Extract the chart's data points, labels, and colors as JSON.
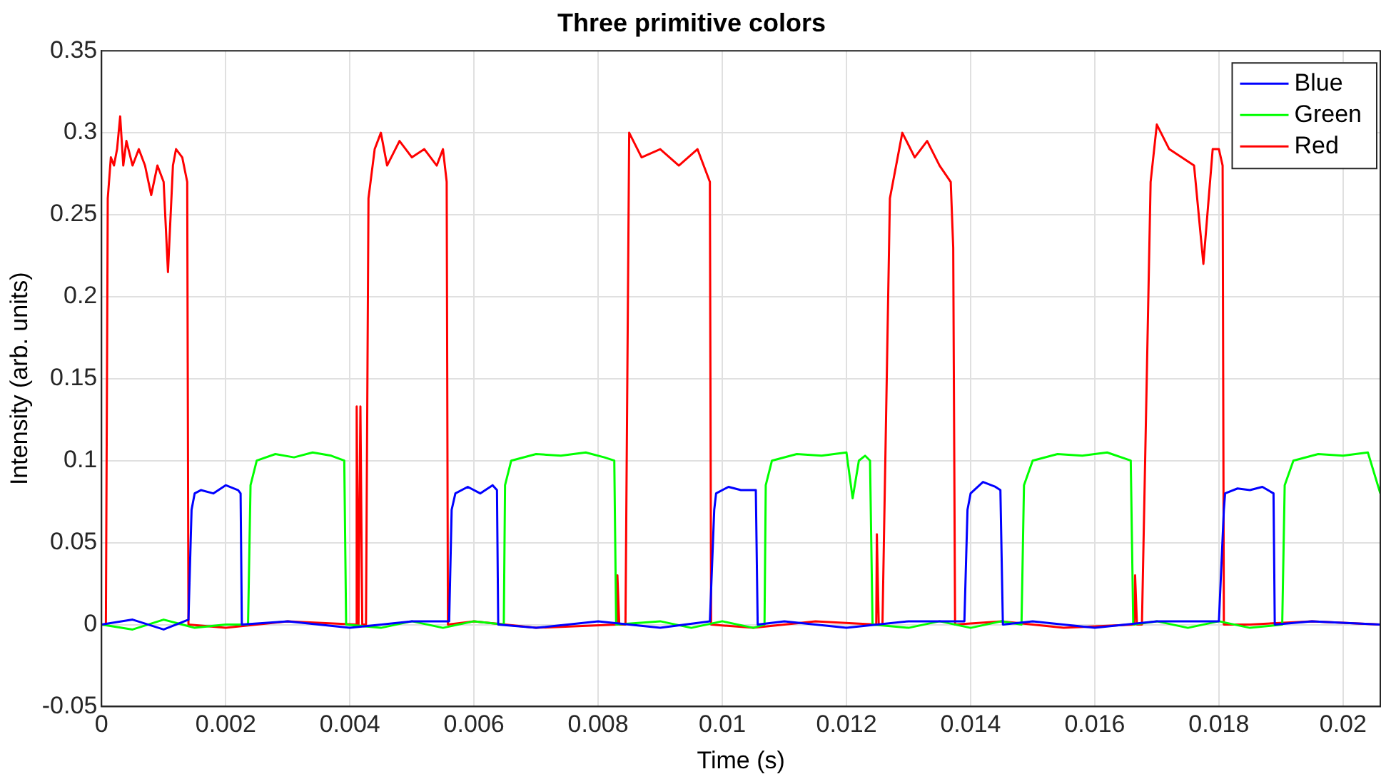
{
  "chart_data": {
    "type": "line",
    "title": "Three primitive colors",
    "xlabel": "Time (s)",
    "ylabel": "Intensity (arb. units)",
    "xlim": [
      0,
      0.0206
    ],
    "xticks": [
      0,
      0.002,
      0.004,
      0.006,
      0.008,
      0.01,
      0.012,
      0.014,
      0.016,
      0.018,
      0.02
    ],
    "ylim": [
      -0.05,
      0.35
    ],
    "yticks": [
      -0.05,
      0,
      0.05,
      0.1,
      0.15,
      0.2,
      0.25,
      0.3,
      0.35
    ],
    "grid": true,
    "legend": "top right",
    "marker": "none",
    "line_style": "solid",
    "series": [
      {
        "name": "Blue",
        "color": "#0000ff",
        "x": [
          0,
          0.0005,
          0.001,
          0.0014,
          0.00145,
          0.0015,
          0.0016,
          0.0018,
          0.002,
          0.0022,
          0.00224,
          0.00226,
          0.003,
          0.004,
          0.005,
          0.0056,
          0.00564,
          0.0057,
          0.0059,
          0.0061,
          0.0063,
          0.00637,
          0.00639,
          0.007,
          0.008,
          0.009,
          0.0098,
          0.00987,
          0.0099,
          0.0101,
          0.0103,
          0.01054,
          0.01057,
          0.011,
          0.012,
          0.013,
          0.0139,
          0.01395,
          0.014,
          0.0142,
          0.0144,
          0.01448,
          0.01452,
          0.015,
          0.016,
          0.017,
          0.018,
          0.01808,
          0.0181,
          0.0183,
          0.0185,
          0.0187,
          0.01888,
          0.0189,
          0.0195,
          0.0206
        ],
        "values": [
          0,
          0.003,
          -0.003,
          0.003,
          0.07,
          0.08,
          0.082,
          0.08,
          0.085,
          0.082,
          0.08,
          0,
          0.002,
          -0.002,
          0.002,
          0.002,
          0.07,
          0.08,
          0.084,
          0.08,
          0.085,
          0.082,
          0,
          -0.002,
          0.002,
          -0.002,
          0.002,
          0.07,
          0.08,
          0.084,
          0.082,
          0.082,
          0,
          0.002,
          -0.002,
          0.002,
          0.002,
          0.07,
          0.08,
          0.087,
          0.084,
          0.082,
          0,
          0.002,
          -0.002,
          0.002,
          0.002,
          0.07,
          0.08,
          0.083,
          0.082,
          0.084,
          0.08,
          0,
          0.002,
          0
        ]
      },
      {
        "name": "Green",
        "color": "#00ff00",
        "x": [
          0,
          0.0005,
          0.001,
          0.0015,
          0.002,
          0.00236,
          0.0024,
          0.0025,
          0.0028,
          0.0031,
          0.0034,
          0.0037,
          0.00391,
          0.00394,
          0.0045,
          0.005,
          0.0055,
          0.006,
          0.00648,
          0.0065,
          0.0066,
          0.007,
          0.0074,
          0.0078,
          0.0081,
          0.00826,
          0.00829,
          0.009,
          0.0095,
          0.01,
          0.0105,
          0.01068,
          0.0107,
          0.0108,
          0.0112,
          0.0116,
          0.012,
          0.0121,
          0.0122,
          0.0123,
          0.01238,
          0.01242,
          0.013,
          0.0135,
          0.014,
          0.0145,
          0.01482,
          0.01486,
          0.015,
          0.0154,
          0.0158,
          0.0162,
          0.01658,
          0.01662,
          0.017,
          0.0175,
          0.018,
          0.0185,
          0.01902,
          0.01906,
          0.0192,
          0.0196,
          0.02,
          0.0204,
          0.0206
        ],
        "values": [
          0,
          -0.003,
          0.003,
          -0.002,
          0,
          0,
          0.085,
          0.1,
          0.104,
          0.102,
          0.105,
          0.103,
          0.1,
          0,
          -0.002,
          0.002,
          -0.002,
          0.002,
          0,
          0.085,
          0.1,
          0.104,
          0.103,
          0.105,
          0.102,
          0.1,
          0,
          0.002,
          -0.002,
          0.002,
          -0.002,
          0,
          0.085,
          0.1,
          0.104,
          0.103,
          0.105,
          0.077,
          0.1,
          0.103,
          0.1,
          0,
          -0.002,
          0.002,
          -0.002,
          0.002,
          0,
          0.085,
          0.1,
          0.104,
          0.103,
          0.105,
          0.1,
          0,
          0.002,
          -0.002,
          0.002,
          -0.002,
          0,
          0.085,
          0.1,
          0.104,
          0.103,
          0.105,
          0.08
        ]
      },
      {
        "name": "Red",
        "color": "#ff0000",
        "x": [
          0,
          7e-05,
          0.0001,
          0.00015,
          0.0002,
          0.00025,
          0.0003,
          0.00035,
          0.0004,
          0.0005,
          0.0006,
          0.0007,
          0.0008,
          0.0009,
          0.001,
          0.00107,
          0.00115,
          0.0012,
          0.0013,
          0.00138,
          0.0014,
          0.002,
          0.003,
          0.0041,
          0.00411,
          0.00414,
          0.00417,
          0.0042,
          0.00426,
          0.0043,
          0.0044,
          0.0045,
          0.0046,
          0.0048,
          0.005,
          0.0052,
          0.0054,
          0.0055,
          0.00556,
          0.00558,
          0.006,
          0.007,
          0.0083,
          0.00831,
          0.00834,
          0.00844,
          0.0085,
          0.0087,
          0.009,
          0.0093,
          0.0096,
          0.0098,
          0.00982,
          0.0105,
          0.0115,
          0.01248,
          0.01249,
          0.01252,
          0.01258,
          0.0127,
          0.0129,
          0.0131,
          0.0133,
          0.0135,
          0.01368,
          0.01372,
          0.01375,
          0.0145,
          0.0155,
          0.01664,
          0.01665,
          0.01668,
          0.01676,
          0.0169,
          0.017,
          0.0172,
          0.0174,
          0.0176,
          0.01775,
          0.0179,
          0.018,
          0.01806,
          0.01808,
          0.0185,
          0.0195,
          0.0206
        ],
        "values": [
          0,
          0,
          0.26,
          0.285,
          0.28,
          0.29,
          0.31,
          0.28,
          0.295,
          0.28,
          0.29,
          0.28,
          0.262,
          0.28,
          0.27,
          0.215,
          0.28,
          0.29,
          0.285,
          0.27,
          0,
          -0.002,
          0.002,
          0,
          0.133,
          0,
          0.133,
          0,
          0,
          0.26,
          0.29,
          0.3,
          0.28,
          0.295,
          0.285,
          0.29,
          0.28,
          0.29,
          0.27,
          0,
          0.002,
          -0.002,
          0,
          0.03,
          0,
          0,
          0.3,
          0.285,
          0.29,
          0.28,
          0.29,
          0.27,
          0,
          -0.002,
          0.002,
          0,
          0.055,
          0,
          0,
          0.26,
          0.3,
          0.285,
          0.295,
          0.28,
          0.27,
          0.23,
          0,
          0.002,
          -0.002,
          0,
          0.03,
          0,
          0,
          0.27,
          0.305,
          0.29,
          0.285,
          0.28,
          0.22,
          0.29,
          0.29,
          0.28,
          0,
          0,
          0.002,
          0
        ]
      }
    ]
  }
}
